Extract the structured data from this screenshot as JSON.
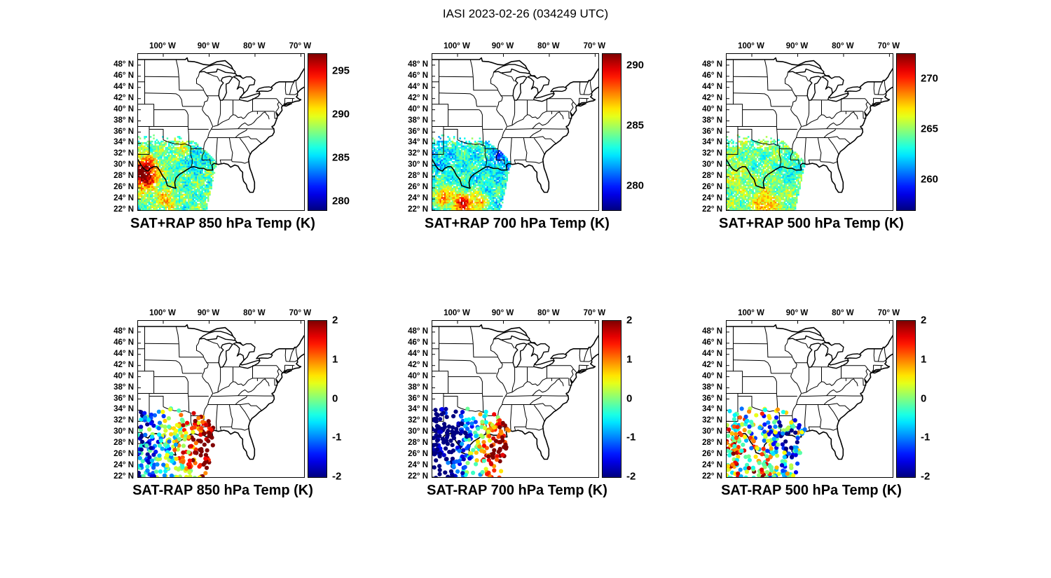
{
  "figure_title": "IASI 2023-02-26 (034249 UTC)",
  "axes": {
    "lon_tick_labels": [
      "100° W",
      "90° W",
      "80° W",
      "70° W"
    ],
    "lon_tick_deg": [
      -100,
      -90,
      -80,
      -70
    ],
    "lat_tick_labels": [
      "48° N",
      "46° N",
      "44° N",
      "42° N",
      "40° N",
      "38° N",
      "36° N",
      "34° N",
      "32° N",
      "30° N",
      "28° N",
      "26° N",
      "24° N",
      "22° N"
    ],
    "lat_tick_deg": [
      48,
      46,
      44,
      42,
      40,
      38,
      36,
      34,
      32,
      30,
      28,
      26,
      24,
      22
    ],
    "lon_range_deg": [
      -105.5,
      -69.3
    ],
    "lat_range_deg": [
      22,
      50
    ],
    "grid": false
  },
  "chart_data": [
    {
      "type": "heatmap",
      "row": "top",
      "title": "SAT+RAP 850 hPa Temp (K)",
      "units": "K",
      "colormap": "jet",
      "colorbar_range": [
        279,
        297
      ],
      "colorbar_ticks": [
        295,
        290,
        285,
        280
      ],
      "data_extent": "satellite swath ~22-35N, 88.5-105.5W (Texas / Gulf of Mexico region)",
      "pattern": "mostly 284-290 K cyan-green field; warm maximum ~294-297 K over west Texas near left edge; scattered warm spots near 24N"
    },
    {
      "type": "heatmap",
      "row": "top",
      "title": "SAT+RAP 700 hPa Temp (K)",
      "units": "K",
      "colormap": "jet",
      "colorbar_range": [
        278,
        291
      ],
      "colorbar_ticks": [
        290,
        285,
        280
      ],
      "data_extent": "satellite swath ~22-35N, 88.5-105.5W (Texas / Gulf of Mexico region)",
      "pattern": "mostly 281-285 K; warm ~287-289 K spots near 23-25N; cooler ~280 K toward northeast edge of swath"
    },
    {
      "type": "heatmap",
      "row": "top",
      "title": "SAT+RAP 500 hPa Temp (K)",
      "units": "K",
      "colormap": "jet",
      "colorbar_range": [
        257,
        272.5
      ],
      "colorbar_ticks": [
        270,
        265,
        260
      ],
      "data_extent": "satellite swath ~22-35N, 88.5-105.5W (Texas / Gulf of Mexico region)",
      "pattern": "fairly uniform 261-266 K green-cyan; slightly warmer band along the southern edge of the swath"
    },
    {
      "type": "scatter",
      "row": "bottom",
      "title": "SAT-RAP 850 hPa Temp (K)",
      "units": "K",
      "colormap": "jet",
      "colorbar_range": [
        -2,
        2
      ],
      "colorbar_ticks": [
        2,
        1,
        0,
        -1,
        -2
      ],
      "data_extent": "observation points ~22-34N, 88.5-105.5W",
      "pattern": "strong positive (+1 to +2 K, red) cluster over Louisiana / east Texas; mixed -1 to +1 K dots over west Texas"
    },
    {
      "type": "scatter",
      "row": "bottom",
      "title": "SAT-RAP 700 hPa Temp (K)",
      "units": "K",
      "colormap": "jet",
      "colorbar_range": [
        -2,
        2
      ],
      "colorbar_ticks": [
        2,
        1,
        0,
        -1,
        -2
      ],
      "data_extent": "observation points ~22-34N, 88.5-105.5W",
      "pattern": "negative (-1 to -2 K, dark blue) cluster over central/west Texas; strong positive (+2 K, dark red) cluster near the Louisiana coast"
    },
    {
      "type": "scatter",
      "row": "bottom",
      "title": "SAT-RAP 500 hPa Temp (K)",
      "units": "K",
      "colormap": "jet",
      "colorbar_range": [
        -2,
        2
      ],
      "colorbar_ticks": [
        2,
        1,
        0,
        -1,
        -2
      ],
      "data_extent": "observation points ~22-34N, 88.5-105.5W",
      "pattern": "mixed -2 to +2 K dots; negative cluster near Louisiana/Mississippi, warm dots over south and west Texas"
    }
  ]
}
